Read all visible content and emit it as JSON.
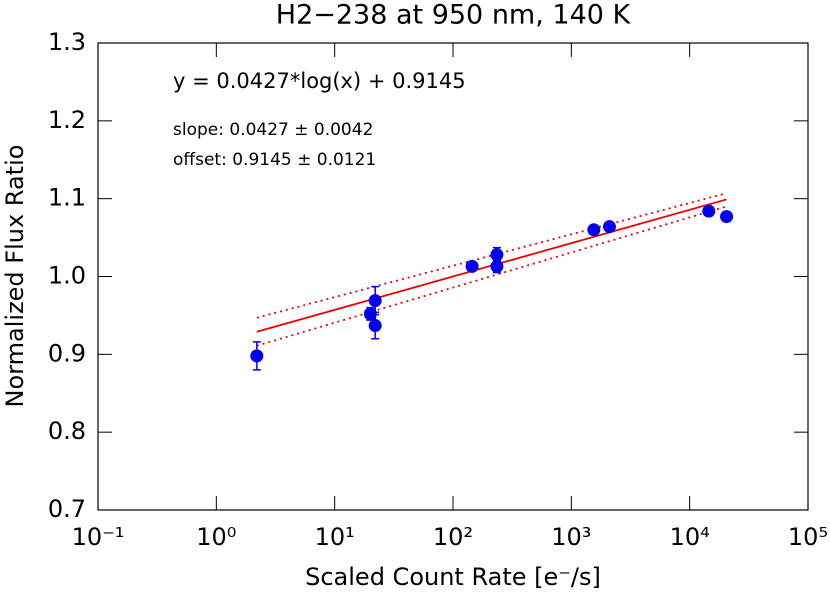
{
  "chart_data": {
    "type": "scatter",
    "title": "H2−238 at 950 nm, 140 K",
    "xlabel": "Scaled Count Rate [e⁻/s]",
    "ylabel": "Normalized Flux Ratio",
    "annotations": [
      "y = 0.0427*log(x) + 0.9145",
      "slope: 0.0427  ± 0.0042",
      "offset: 0.9145  ± 0.0121"
    ],
    "xscale": "log",
    "xlim": [
      0.1,
      100000
    ],
    "xticks": [
      {
        "value": 0.1,
        "label": "10⁻¹"
      },
      {
        "value": 1,
        "label": "10⁰"
      },
      {
        "value": 10,
        "label": "10¹"
      },
      {
        "value": 100,
        "label": "10²"
      },
      {
        "value": 1000,
        "label": "10³"
      },
      {
        "value": 10000,
        "label": "10⁴"
      },
      {
        "value": 100000,
        "label": "10⁵"
      }
    ],
    "ylim": [
      0.7,
      1.3
    ],
    "yticks": [
      0.7,
      0.8,
      0.9,
      {
        "value": 1,
        "label": "1.0"
      },
      1.1,
      1.2,
      1.3
    ],
    "color": "#0000ee",
    "x": [
      2.2,
      20,
      22,
      22,
      145,
      235,
      235,
      1550,
      2100,
      14500,
      20500
    ],
    "values": [
      0.898,
      0.952,
      0.969,
      0.937,
      1.013,
      1.028,
      1.013,
      1.06,
      1.064,
      1.084,
      1.077
    ],
    "errors": [
      0.018,
      0.008,
      0.018,
      0.017,
      0.004,
      0.009,
      0.008,
      0.004,
      0.004,
      0.004,
      0.006
    ],
    "lines": [
      {
        "x": [
          2.2,
          20500
        ],
        "values": [
          0.929,
          1.099
        ],
        "color": "#ee0000",
        "style": "solid"
      },
      {
        "x": [
          2.2,
          20500
        ],
        "values": [
          0.947,
          1.107
        ],
        "color": "#ee0000",
        "style": "dotted"
      },
      {
        "x": [
          2.2,
          20500
        ],
        "values": [
          0.911,
          1.09
        ],
        "color": "#ee0000",
        "style": "dotted"
      }
    ]
  }
}
